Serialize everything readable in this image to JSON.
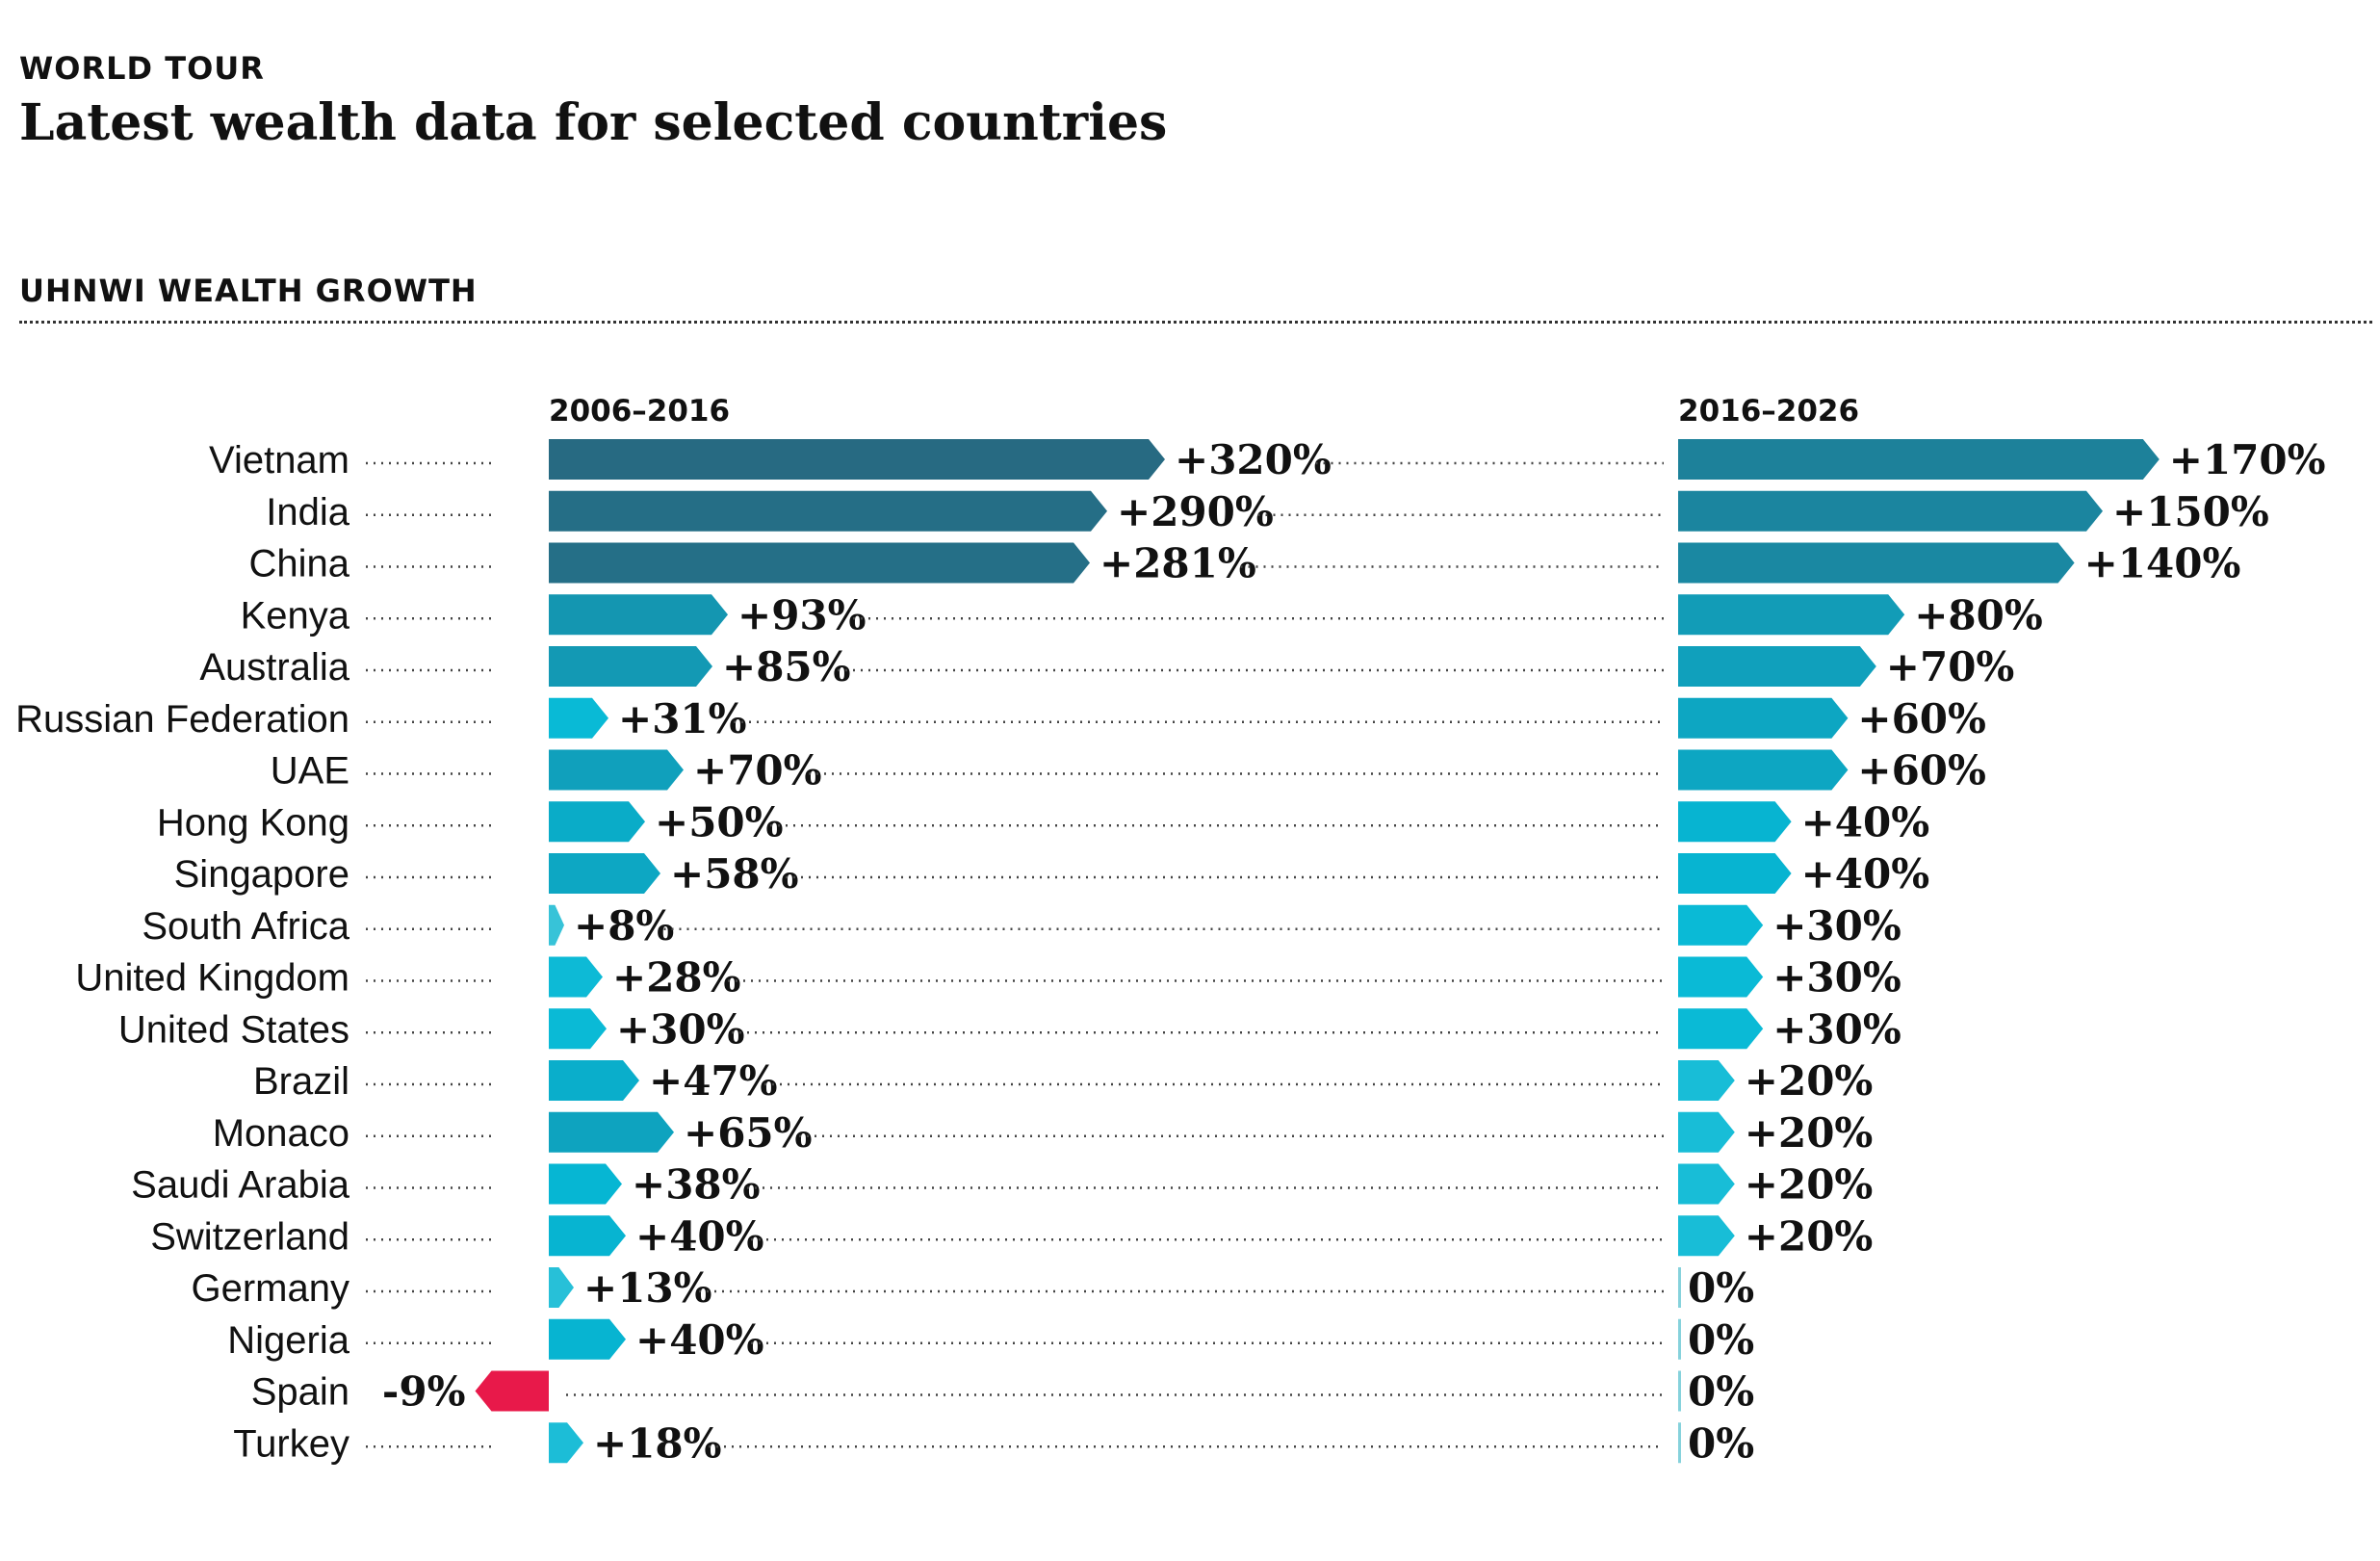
{
  "header": {
    "kicker": "WORLD TOUR",
    "title": "Latest wealth data for selected countries",
    "subtitle": "UHNWI WEALTH GROWTH"
  },
  "colors": {
    "negative": "#e8194a",
    "ramp_light": "#86d2dc",
    "ramp_bright": "#05b9d6",
    "ramp_dark": "#276a82"
  },
  "chart_data": {
    "type": "bar",
    "orientation": "horizontal",
    "categories": [
      "Vietnam",
      "India",
      "China",
      "Kenya",
      "Australia",
      "Russian Federation",
      "UAE",
      "Hong Kong",
      "Singapore",
      "South Africa",
      "United Kingdom",
      "United States",
      "Brazil",
      "Monaco",
      "Saudi Arabia",
      "Switzerland",
      "Germany",
      "Nigeria",
      "Spain",
      "Turkey"
    ],
    "series": [
      {
        "name": "2006–2016",
        "values": [
          320,
          290,
          281,
          93,
          85,
          31,
          70,
          50,
          58,
          8,
          28,
          30,
          47,
          65,
          38,
          40,
          13,
          40,
          -9,
          18
        ],
        "labels": [
          "+320%",
          "+290%",
          "+281%",
          "+93%",
          "+85%",
          "+31%",
          "+70%",
          "+50%",
          "+58%",
          "+8%",
          "+28%",
          "+30%",
          "+47%",
          "+65%",
          "+38%",
          "+40%",
          "+13%",
          "+40%",
          "-9%",
          "+18%"
        ]
      },
      {
        "name": "2016–2026",
        "values": [
          170,
          150,
          140,
          80,
          70,
          60,
          60,
          40,
          40,
          30,
          30,
          30,
          20,
          20,
          20,
          20,
          0,
          0,
          0,
          0
        ],
        "labels": [
          "+170%",
          "+150%",
          "+140%",
          "+80%",
          "+70%",
          "+60%",
          "+60%",
          "+40%",
          "+40%",
          "+30%",
          "+30%",
          "+30%",
          "+20%",
          "+20%",
          "+20%",
          "+20%",
          "0%",
          "0%",
          "0%",
          "0%"
        ]
      }
    ],
    "unit": "%",
    "grid": false,
    "legend": "none"
  }
}
